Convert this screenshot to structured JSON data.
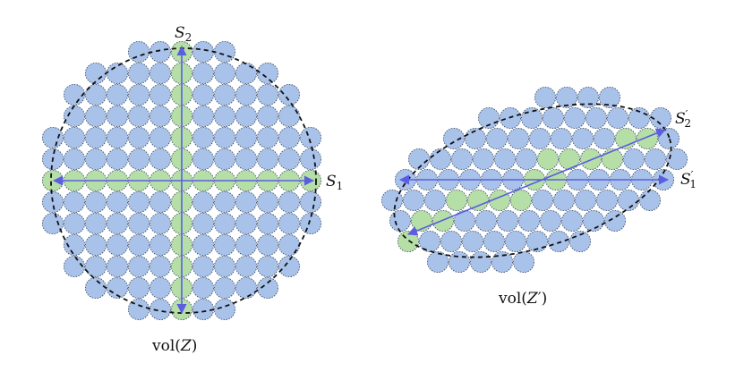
{
  "left_panel": {
    "x_axis_label": {
      "base": "S",
      "sub": "1"
    },
    "y_axis_label": {
      "base": "S",
      "sub": "2"
    },
    "caption": {
      "prefix": "vol(",
      "var": "Z",
      "suffix": ")"
    }
  },
  "right_panel": {
    "x_axis_label": {
      "base": "S",
      "prime": "′",
      "sub": "1"
    },
    "diag_axis_label": {
      "base": "S",
      "prime": "′",
      "sub": "2"
    },
    "caption": {
      "prefix": "vol(",
      "var": "Z",
      "prime": "′",
      "suffix": ")"
    }
  },
  "colors": {
    "disc_fill": "#a9c2ea",
    "highlight_fill": "#b5dfa6",
    "axis_color": "#5b5ee0",
    "boundary_color": "#111111"
  }
}
